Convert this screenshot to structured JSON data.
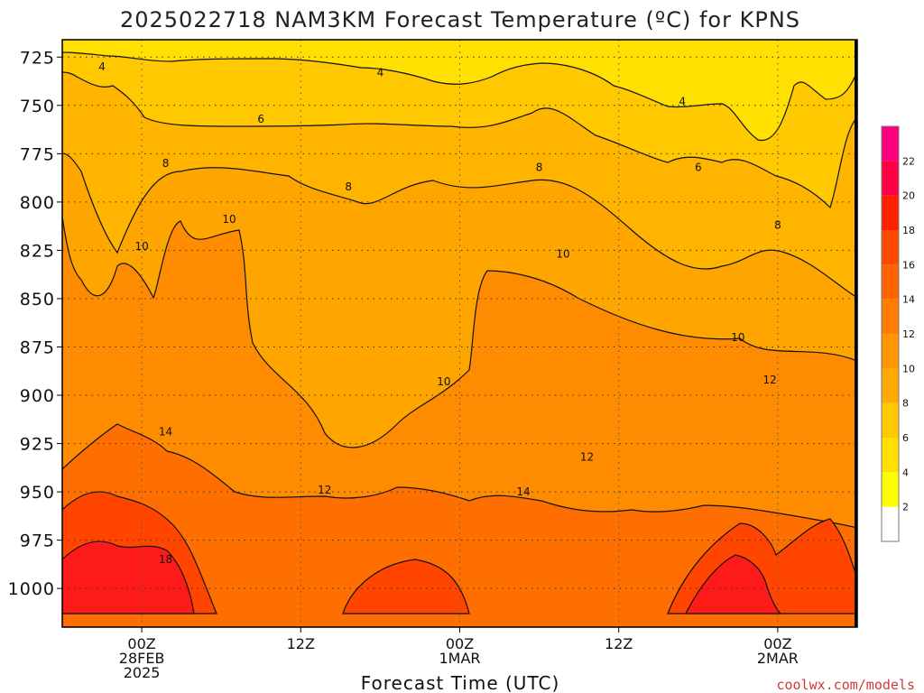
{
  "chart_data": {
    "type": "heatmap",
    "title": "2025022718 NAM3KM Forecast Temperature (ºC) for KPNS",
    "xlabel": "Forecast Time (UTC)",
    "ylabel": "",
    "x_tick_labels": [
      {
        "lines": [
          "00Z",
          "28FEB",
          "2025"
        ]
      },
      {
        "lines": [
          "12Z"
        ]
      },
      {
        "lines": [
          "00Z",
          "1MAR"
        ]
      },
      {
        "lines": [
          "12Z"
        ]
      },
      {
        "lines": [
          "00Z",
          "2MAR"
        ]
      }
    ],
    "y_ticks": [
      725,
      750,
      775,
      800,
      825,
      850,
      875,
      900,
      925,
      950,
      975,
      1000
    ],
    "ylim": [
      1020,
      716
    ],
    "y_scale": "pressure (hPa), inverted",
    "grid": true,
    "colorbar": {
      "levels": [
        2,
        4,
        6,
        8,
        10,
        12,
        14,
        16,
        18,
        20,
        22
      ],
      "colors": [
        "#ffffff",
        "#ffff00",
        "#ffe000",
        "#ffc800",
        "#ffaa00",
        "#ff9600",
        "#ff7d00",
        "#ff6400",
        "#ff4800",
        "#ff2000",
        "#ff0044",
        "#ff0080"
      ]
    },
    "contour_labels": [
      {
        "text": "4",
        "x": 0.05,
        "y": 730
      },
      {
        "text": "4",
        "x": 0.4,
        "y": 733
      },
      {
        "text": "4",
        "x": 0.78,
        "y": 748
      },
      {
        "text": "6",
        "x": 0.25,
        "y": 757
      },
      {
        "text": "6",
        "x": 0.8,
        "y": 782
      },
      {
        "text": "8",
        "x": 0.13,
        "y": 780
      },
      {
        "text": "8",
        "x": 0.36,
        "y": 792
      },
      {
        "text": "8",
        "x": 0.6,
        "y": 782
      },
      {
        "text": "8",
        "x": 0.9,
        "y": 812
      },
      {
        "text": "10",
        "x": 0.1,
        "y": 823
      },
      {
        "text": "10",
        "x": 0.21,
        "y": 809
      },
      {
        "text": "10",
        "x": 0.48,
        "y": 893
      },
      {
        "text": "10",
        "x": 0.63,
        "y": 827
      },
      {
        "text": "10",
        "x": 0.85,
        "y": 870
      },
      {
        "text": "12",
        "x": 0.33,
        "y": 949
      },
      {
        "text": "12",
        "x": 0.66,
        "y": 932
      },
      {
        "text": "12",
        "x": 0.89,
        "y": 892
      },
      {
        "text": "14",
        "x": 0.13,
        "y": 919
      },
      {
        "text": "14",
        "x": 0.58,
        "y": 950
      },
      {
        "text": "18",
        "x": 0.13,
        "y": 985
      }
    ],
    "ground": {
      "color": "#a0522d"
    }
  },
  "credit": "coolwx.com/models"
}
